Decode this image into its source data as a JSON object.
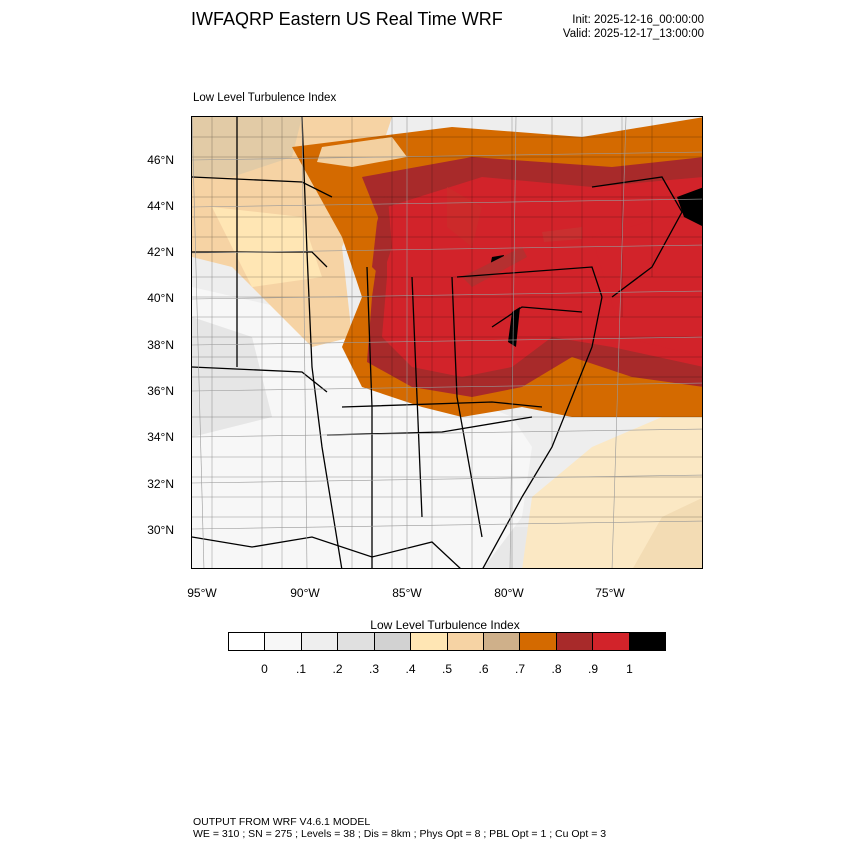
{
  "header": {
    "title": "IWFAQRP Eastern US Real Time WRF",
    "init": "Init: 2025-12-16_00:00:00",
    "valid": "Valid: 2025-12-17_13:00:00"
  },
  "plot": {
    "title": "Low Level Turbulence Index",
    "lat_labels": [
      "46°N",
      "44°N",
      "42°N",
      "40°N",
      "38°N",
      "36°N",
      "34°N",
      "32°N",
      "30°N"
    ],
    "lon_labels": [
      "95°W",
      "90°W",
      "85°W",
      "80°W",
      "75°W"
    ]
  },
  "colorbar": {
    "title": "Low Level Turbulence Index",
    "ticks": [
      "0",
      ".1",
      ".2",
      ".3",
      ".4",
      ".5",
      ".6",
      ".7",
      ".8",
      ".9",
      "1"
    ],
    "colors": [
      "#ffffff",
      "#f7f7f7",
      "#eeeeee",
      "#e0e0e0",
      "#d2d2d2",
      "#ffe6b4",
      "#f6d3a4",
      "#cfb08a",
      "#d46a00",
      "#a82a2a",
      "#d2232a",
      "#000000"
    ]
  },
  "footer": {
    "line1": "OUTPUT FROM WRF V4.6.1 MODEL",
    "line2": "WE = 310 ; SN = 275 ; Levels = 38 ; Dis = 8km ; Phys Opt = 8 ; PBL Opt = 1 ; Cu Opt = 3"
  }
}
